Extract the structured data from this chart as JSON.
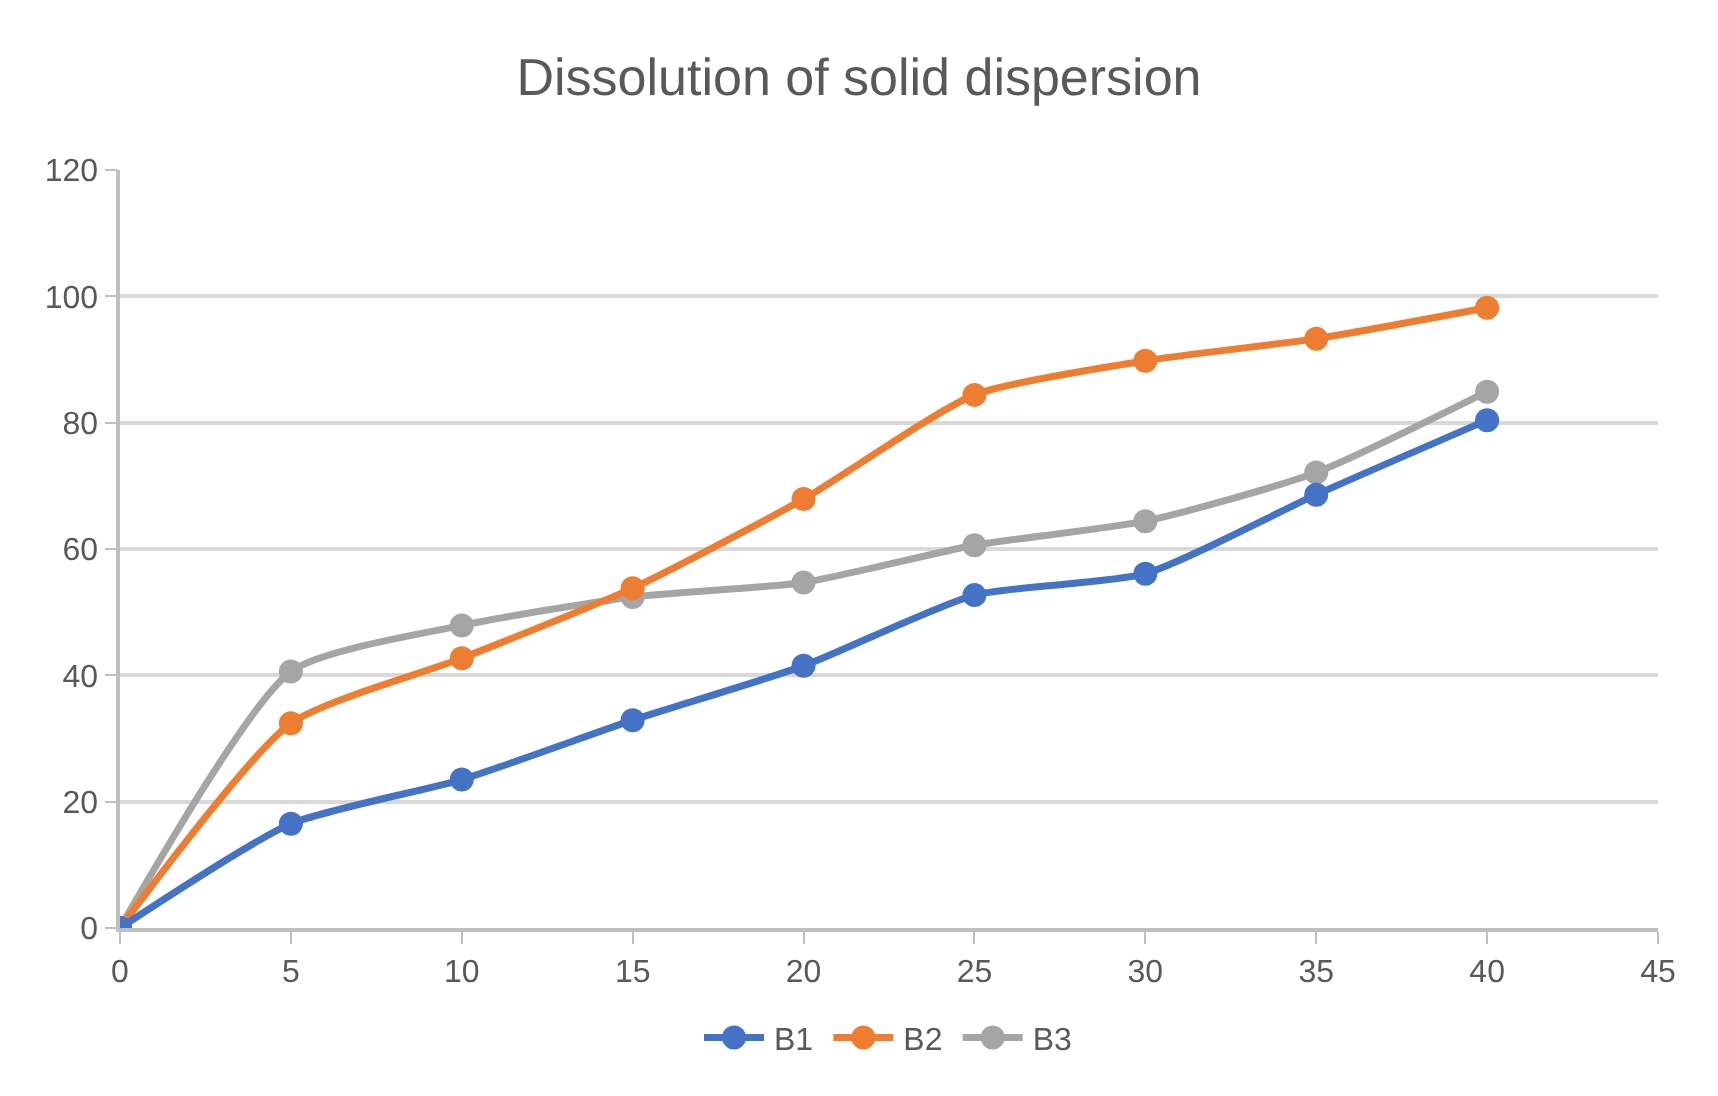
{
  "chart_data": {
    "type": "line",
    "title": "Dissolution of solid dispersion",
    "x": [
      0,
      5,
      10,
      15,
      20,
      25,
      30,
      35,
      40
    ],
    "series": [
      {
        "name": "B1",
        "color": "#4472c4",
        "values": [
          0,
          16.5,
          23.5,
          32.9,
          41.5,
          52.7,
          56.1,
          68.6,
          80.4
        ]
      },
      {
        "name": "B2",
        "color": "#ed7d31",
        "values": [
          0,
          32.4,
          42.7,
          53.8,
          67.9,
          84.4,
          89.8,
          93.3,
          98.2
        ]
      },
      {
        "name": "B3",
        "color": "#a5a5a5",
        "values": [
          0,
          40.6,
          47.9,
          52.4,
          54.7,
          60.6,
          64.4,
          72.1,
          84.9
        ]
      }
    ],
    "xlim": [
      0,
      45
    ],
    "xticks": [
      0,
      5,
      10,
      15,
      20,
      25,
      30,
      35,
      40,
      45
    ],
    "ylim": [
      0,
      120
    ],
    "yticks": [
      0,
      20,
      40,
      60,
      80,
      100,
      120
    ],
    "grid": "y",
    "legend": "bottom",
    "marker": "circle",
    "line_style": "solid"
  }
}
